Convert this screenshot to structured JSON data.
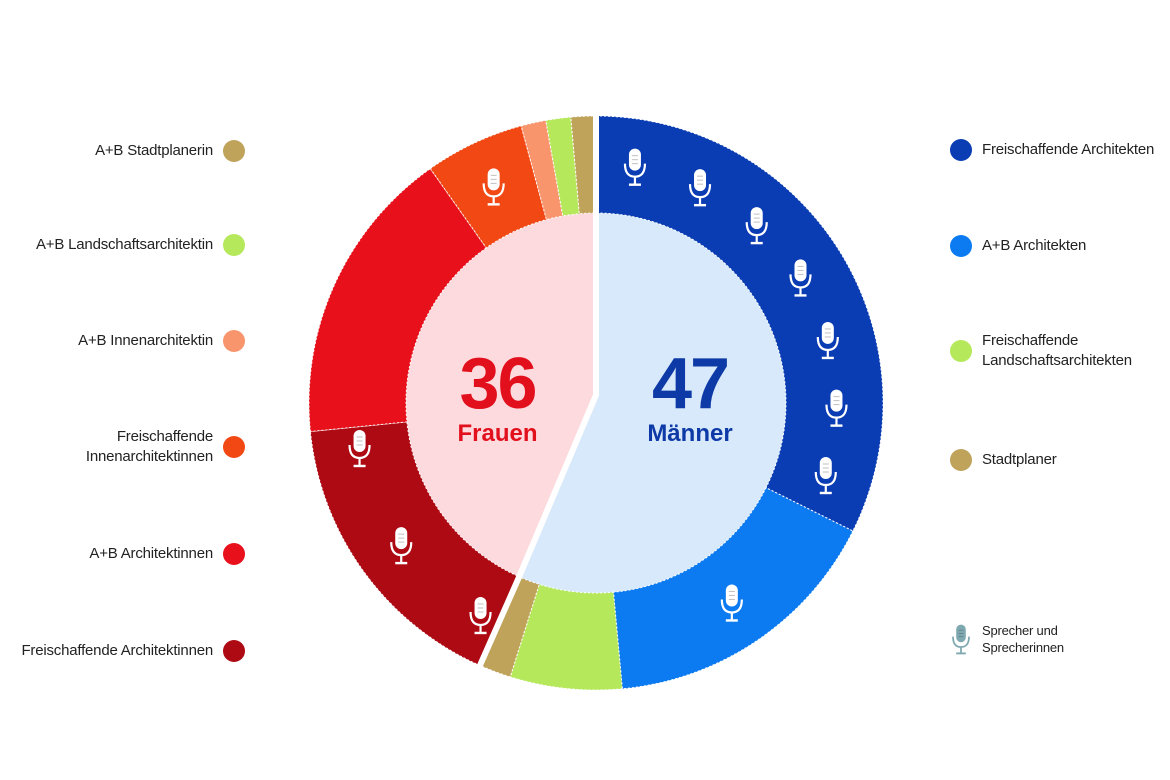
{
  "chart_data": {
    "type": "donut",
    "inner": [
      {
        "label": "Frauen",
        "value": 36,
        "color": "#ef1321",
        "fill": "#fcdadd"
      },
      {
        "label": "Männer",
        "value": 47,
        "color": "#0d3db0",
        "fill": "#d7e9fb"
      }
    ],
    "outer_segments": [
      {
        "name": "Freischaffende Architekten",
        "group": "Männer",
        "value": 18,
        "color": "#0a3cb3",
        "speakers": 7
      },
      {
        "name": "A+B Architekten",
        "group": "Männer",
        "value": 9,
        "color": "#0c7bf1",
        "speakers": 1
      },
      {
        "name": "Freischaffende Landschaftsarchitekten",
        "group": "Männer",
        "value": 3.5,
        "color": "#b5e85a",
        "speakers": 0
      },
      {
        "name": "Stadtplaner",
        "group": "Männer",
        "value": 1,
        "color": "#c0a35b",
        "speakers": 0
      },
      {
        "name": "Freischaffende Architektinnen",
        "group": "Frauen",
        "value": 12,
        "color": "#ad0a13",
        "speakers": 3
      },
      {
        "name": "A+B Architektinnen",
        "group": "Frauen",
        "value": 12,
        "color": "#e8101a",
        "speakers": 0
      },
      {
        "name": "Freischaffende Innenarchitektinnen",
        "group": "Frauen",
        "value": 4,
        "color": "#f24813",
        "speakers": 1
      },
      {
        "name": "A+B Innenarchitektin",
        "group": "Frauen",
        "value": 1,
        "color": "#f8956d",
        "speakers": 0
      },
      {
        "name": "A+B Landschaftsarchitektin",
        "group": "Frauen",
        "value": 1,
        "color": "#b5e85a",
        "speakers": 0
      },
      {
        "name": "A+B Stadtplanerin",
        "group": "Frauen",
        "value": 1,
        "color": "#c0a35b",
        "speakers": 0
      }
    ]
  },
  "legend_left": [
    {
      "label": "A+B Stadtplanerin",
      "color": "#c0a35b"
    },
    {
      "label": "A+B Landschaftsarchitektin",
      "color": "#b5e85a"
    },
    {
      "label": "A+B Innenarchitektin",
      "color": "#f8956d"
    },
    {
      "label": "Freischaffende\nInnenarchitektinnen",
      "color": "#f24813"
    },
    {
      "label": "A+B Architektinnen",
      "color": "#e8101a"
    },
    {
      "label": "Freischaffende Architektinnen",
      "color": "#ad0a13"
    }
  ],
  "legend_right": [
    {
      "label": "Freischaffende Architekten",
      "color": "#0a3cb3"
    },
    {
      "label": "A+B Architekten",
      "color": "#0c7bf1"
    },
    {
      "label": "Freischaffende\nLandschaftsarchitekten",
      "color": "#b5e85a"
    },
    {
      "label": "Stadtplaner",
      "color": "#c0a35b"
    }
  ],
  "speaker_legend": {
    "label": "Sprecher und\nSprecherinnen",
    "icon": "microphone-icon",
    "color": "#7fa9b1"
  },
  "center": {
    "women_number": "36",
    "women_label": "Frauen",
    "men_number": "47",
    "men_label": "Männer"
  }
}
